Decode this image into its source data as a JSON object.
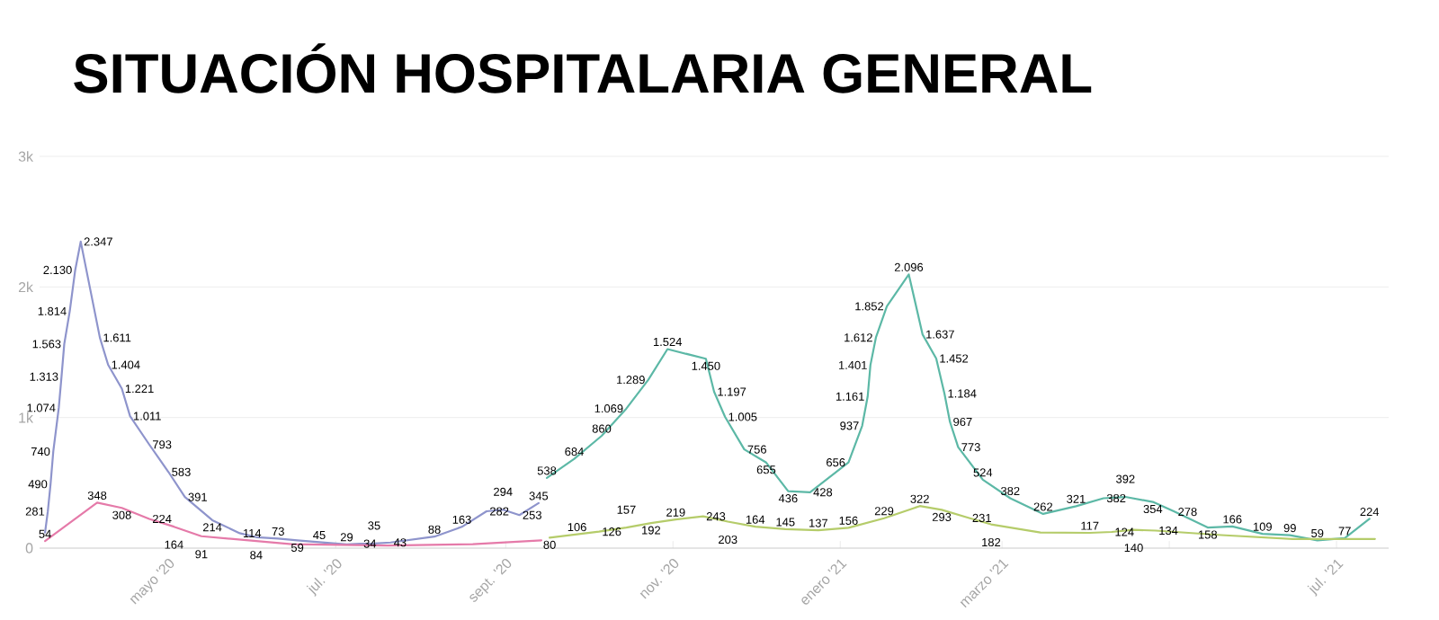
{
  "chart_data": {
    "type": "line",
    "title": "SITUACIÓN HOSPITALARIA GENERAL",
    "xlim": [
      "2020-03-15",
      "2021-07-20"
    ],
    "xticks": [
      {
        "value": "2020-05-01",
        "label": "mayo '20"
      },
      {
        "value": "2020-07-01",
        "label": "jul. '20"
      },
      {
        "value": "2020-09-01",
        "label": "sept. '20"
      },
      {
        "value": "2020-11-01",
        "label": "nov. '20"
      },
      {
        "value": "2021-01-01",
        "label": "enero '21"
      },
      {
        "value": "2021-03-01",
        "label": "marzo '21"
      },
      {
        "value": "2021-05-01",
        "label": null
      },
      {
        "value": "2021-07-01",
        "label": "jul. '21"
      }
    ],
    "ylim": [
      0,
      3000
    ],
    "yticks": [
      0,
      {
        "value": 1000,
        "label": "1k"
      },
      {
        "value": 2000,
        "label": "2k"
      },
      {
        "value": 3000,
        "label": "3k"
      }
    ],
    "grid": "y",
    "marker": "none",
    "line_style": "solid",
    "series": [
      {
        "color": "#8e94cc",
        "x": [
          "2020-03-17",
          "2020-03-18",
          "2020-03-19",
          "2020-03-20",
          "2020-03-22",
          "2020-03-23",
          "2020-03-24",
          "2020-03-26",
          "2020-03-28",
          "2020-03-30",
          "2020-04-06",
          "2020-04-09",
          "2020-04-14",
          "2020-04-17",
          "2020-04-24",
          "2020-05-01",
          "2020-05-07",
          "2020-05-17",
          "2020-05-27",
          "2020-06-02",
          "2020-06-10",
          "2020-06-17",
          "2020-06-25",
          "2020-07-05",
          "2020-07-10",
          "2020-07-15",
          "2020-07-21",
          "2020-08-06",
          "2020-08-16",
          "2020-08-25",
          "2020-08-31",
          "2020-09-06",
          "2020-09-13"
        ],
        "values": [
          120,
          281,
          490,
          740,
          1074,
          1313,
          1563,
          1814,
          2130,
          2347,
          1611,
          1404,
          1221,
          1011,
          793,
          583,
          391,
          214,
          114,
          84,
          73,
          59,
          45,
          29,
          34,
          35,
          43,
          88,
          163,
          282,
          294,
          253,
          345
        ],
        "value_labels": [
          null,
          "281",
          "490",
          "740",
          "1.074",
          "1.313",
          "1.563",
          "1.814",
          "2.130",
          "2.347",
          "1.611",
          "1.404",
          "1.221",
          "1.011",
          "793",
          "583",
          "391",
          "214",
          "114",
          "84",
          "73",
          "59",
          "45",
          "29",
          "34",
          "35",
          "43",
          "88",
          "163",
          "282",
          "294",
          "253",
          "345"
        ]
      },
      {
        "color": "#5cb8a6",
        "x": [
          "2020-09-16",
          "2020-09-26",
          "2020-10-06",
          "2020-10-15",
          "2020-10-23",
          "2020-10-30",
          "2020-11-13",
          "2020-11-16",
          "2020-11-20",
          "2020-11-27",
          "2020-12-05",
          "2020-12-13",
          "2020-12-21",
          "2021-01-04",
          "2021-01-09",
          "2021-01-11",
          "2021-01-12",
          "2021-01-14",
          "2021-01-18",
          "2021-01-26",
          "2021-01-31",
          "2021-02-05",
          "2021-02-08",
          "2021-02-10",
          "2021-02-13",
          "2021-02-22",
          "2021-03-04",
          "2021-03-16",
          "2021-03-28",
          "2021-04-07",
          "2021-04-15",
          "2021-04-25",
          "2021-05-03",
          "2021-05-15",
          "2021-05-24",
          "2021-06-04",
          "2021-06-14",
          "2021-06-24",
          "2021-07-04",
          "2021-07-13"
        ],
        "values": [
          538,
          684,
          860,
          1069,
          1289,
          1524,
          1450,
          1197,
          1005,
          756,
          655,
          436,
          428,
          656,
          937,
          1161,
          1401,
          1612,
          1852,
          2096,
          1637,
          1452,
          1184,
          967,
          773,
          524,
          382,
          262,
          321,
          382,
          392,
          354,
          278,
          158,
          166,
          109,
          99,
          59,
          77,
          224
        ],
        "value_labels": [
          "538",
          "684",
          "860",
          "1.069",
          "1.289",
          "1.524",
          "1.450",
          "1.197",
          "1.005",
          "756",
          "655",
          "436",
          "428",
          "656",
          "937",
          "1.161",
          "1.401",
          "1.612",
          "1.852",
          "2.096",
          "1.637",
          "1.452",
          "1.184",
          "967",
          "773",
          "524",
          "382",
          "262",
          "321",
          "382",
          "392",
          "354",
          "278",
          "158",
          "166",
          "109",
          "99",
          "59",
          "77",
          "224"
        ]
      },
      {
        "color": "#e57aa9",
        "x": [
          "2020-03-17",
          "2020-04-05",
          "2020-04-14",
          "2020-04-24",
          "2020-05-03",
          "2020-05-13",
          "2020-06-15",
          "2020-07-20",
          "2020-08-20",
          "2020-09-14"
        ],
        "values": [
          54,
          348,
          308,
          224,
          164,
          91,
          30,
          20,
          30,
          60
        ],
        "value_labels": [
          "54",
          "348",
          "308",
          "224",
          "164",
          "91",
          null,
          null,
          null,
          null
        ]
      },
      {
        "color": "#b5cc6a",
        "x": [
          "2020-09-17",
          "2020-09-27",
          "2020-10-05",
          "2020-10-15",
          "2020-10-24",
          "2020-11-02",
          "2020-11-12",
          "2020-11-21",
          "2020-12-01",
          "2020-12-12",
          "2020-12-24",
          "2021-01-04",
          "2021-01-17",
          "2021-01-30",
          "2021-02-07",
          "2021-02-17",
          "2021-02-25",
          "2021-03-15",
          "2021-04-02",
          "2021-04-10",
          "2021-04-18",
          "2021-04-26",
          "2021-05-20",
          "2021-06-15",
          "2021-07-15"
        ],
        "values": [
          80,
          106,
          126,
          157,
          192,
          219,
          243,
          203,
          164,
          145,
          137,
          156,
          229,
          322,
          293,
          231,
          182,
          120,
          117,
          124,
          140,
          134,
          100,
          70,
          70
        ],
        "value_labels": [
          "80",
          "106",
          "126",
          "157",
          "192",
          "219",
          "243",
          "203",
          "164",
          "145",
          "137",
          "156",
          "229",
          "322",
          "293",
          "231",
          "182",
          null,
          "117",
          "124",
          "140",
          "134",
          null,
          null,
          null
        ]
      }
    ]
  }
}
